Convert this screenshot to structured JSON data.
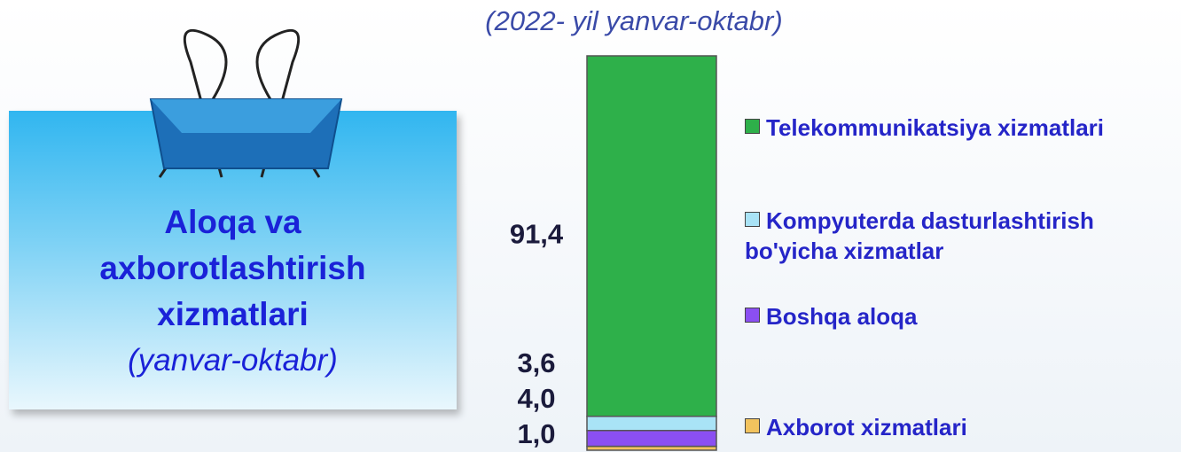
{
  "panel": {
    "title": "Aloqa va axborotlashtirish xizmatlari",
    "subtitle": "(yanvar-oktabr)"
  },
  "chart_data": {
    "type": "stacked-bar",
    "subtitle": "(2022- yil yanvar-oktabr)",
    "ylim": [
      0,
      100
    ],
    "series": [
      {
        "name": "Axborot xizmatlari",
        "color": "#f2c35e",
        "values": [
          1.0
        ],
        "value_labels": [
          "1,0"
        ]
      },
      {
        "name": "Boshqa aloqa",
        "color": "#8b4ff2",
        "values": [
          4.0
        ],
        "value_labels": [
          "4,0"
        ]
      },
      {
        "name": "Kompyuterda dasturlashtirish bo'yicha xizmatlar",
        "color": "#a9e3f6",
        "values": [
          3.6
        ],
        "value_labels": [
          "3,6"
        ]
      },
      {
        "name": "Telekommunikatsiya xizmatlari",
        "color": "#2eb04a",
        "values": [
          91.4
        ],
        "value_labels": [
          "91,4"
        ]
      }
    ]
  }
}
